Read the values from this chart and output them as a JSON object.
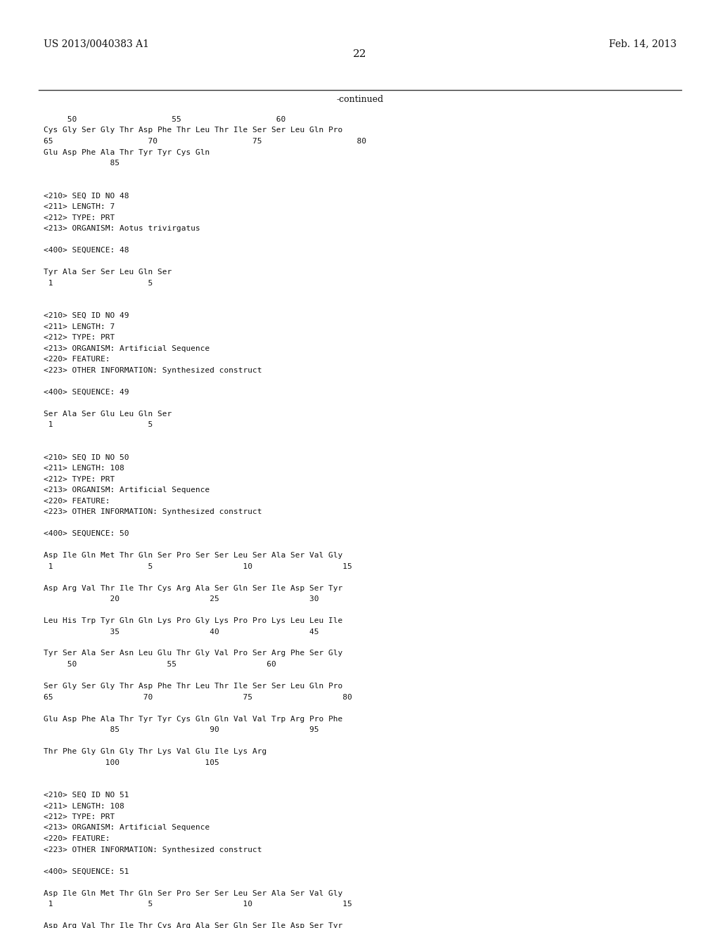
{
  "bg_color": "#ffffff",
  "top_left_text": "US 2013/0040383 A1",
  "top_right_text": "Feb. 14, 2013",
  "page_number": "22",
  "continued_label": "-continued",
  "figsize": [
    10.24,
    13.2
  ],
  "dpi": 100,
  "lines": [
    {
      "text": "     50                    55                    60",
      "indent": 0.09,
      "row": 0
    },
    {
      "text": "Cys Gly Ser Gly Thr Asp Phe Thr Leu Thr Ile Ser Ser Leu Gln Pro",
      "indent": 0.09,
      "row": 1
    },
    {
      "text": "65                    70                    75                    80",
      "indent": 0.09,
      "row": 2
    },
    {
      "text": "Glu Asp Phe Ala Thr Tyr Tyr Cys Gln",
      "indent": 0.09,
      "row": 3
    },
    {
      "text": "              85",
      "indent": 0.09,
      "row": 4
    },
    {
      "text": "",
      "indent": 0.09,
      "row": 5
    },
    {
      "text": "",
      "indent": 0.09,
      "row": 6
    },
    {
      "text": "<210> SEQ ID NO 48",
      "indent": 0.09,
      "row": 7
    },
    {
      "text": "<211> LENGTH: 7",
      "indent": 0.09,
      "row": 8
    },
    {
      "text": "<212> TYPE: PRT",
      "indent": 0.09,
      "row": 9
    },
    {
      "text": "<213> ORGANISM: Aotus trivirgatus",
      "indent": 0.09,
      "row": 10
    },
    {
      "text": "",
      "indent": 0.09,
      "row": 11
    },
    {
      "text": "<400> SEQUENCE: 48",
      "indent": 0.09,
      "row": 12
    },
    {
      "text": "",
      "indent": 0.09,
      "row": 13
    },
    {
      "text": "Tyr Ala Ser Ser Leu Gln Ser",
      "indent": 0.09,
      "row": 14
    },
    {
      "text": " 1                    5",
      "indent": 0.09,
      "row": 15
    },
    {
      "text": "",
      "indent": 0.09,
      "row": 16
    },
    {
      "text": "",
      "indent": 0.09,
      "row": 17
    },
    {
      "text": "<210> SEQ ID NO 49",
      "indent": 0.09,
      "row": 18
    },
    {
      "text": "<211> LENGTH: 7",
      "indent": 0.09,
      "row": 19
    },
    {
      "text": "<212> TYPE: PRT",
      "indent": 0.09,
      "row": 20
    },
    {
      "text": "<213> ORGANISM: Artificial Sequence",
      "indent": 0.09,
      "row": 21
    },
    {
      "text": "<220> FEATURE:",
      "indent": 0.09,
      "row": 22
    },
    {
      "text": "<223> OTHER INFORMATION: Synthesized construct",
      "indent": 0.09,
      "row": 23
    },
    {
      "text": "",
      "indent": 0.09,
      "row": 24
    },
    {
      "text": "<400> SEQUENCE: 49",
      "indent": 0.09,
      "row": 25
    },
    {
      "text": "",
      "indent": 0.09,
      "row": 26
    },
    {
      "text": "Ser Ala Ser Glu Leu Gln Ser",
      "indent": 0.09,
      "row": 27
    },
    {
      "text": " 1                    5",
      "indent": 0.09,
      "row": 28
    },
    {
      "text": "",
      "indent": 0.09,
      "row": 29
    },
    {
      "text": "",
      "indent": 0.09,
      "row": 30
    },
    {
      "text": "<210> SEQ ID NO 50",
      "indent": 0.09,
      "row": 31
    },
    {
      "text": "<211> LENGTH: 108",
      "indent": 0.09,
      "row": 32
    },
    {
      "text": "<212> TYPE: PRT",
      "indent": 0.09,
      "row": 33
    },
    {
      "text": "<213> ORGANISM: Artificial Sequence",
      "indent": 0.09,
      "row": 34
    },
    {
      "text": "<220> FEATURE:",
      "indent": 0.09,
      "row": 35
    },
    {
      "text": "<223> OTHER INFORMATION: Synthesized construct",
      "indent": 0.09,
      "row": 36
    },
    {
      "text": "",
      "indent": 0.09,
      "row": 37
    },
    {
      "text": "<400> SEQUENCE: 50",
      "indent": 0.09,
      "row": 38
    },
    {
      "text": "",
      "indent": 0.09,
      "row": 39
    },
    {
      "text": "Asp Ile Gln Met Thr Gln Ser Pro Ser Ser Leu Ser Ala Ser Val Gly",
      "indent": 0.09,
      "row": 40
    },
    {
      "text": " 1                    5                   10                   15",
      "indent": 0.09,
      "row": 41
    },
    {
      "text": "",
      "indent": 0.09,
      "row": 42
    },
    {
      "text": "Asp Arg Val Thr Ile Thr Cys Arg Ala Ser Gln Ser Ile Asp Ser Tyr",
      "indent": 0.09,
      "row": 43
    },
    {
      "text": "              20                   25                   30",
      "indent": 0.09,
      "row": 44
    },
    {
      "text": "",
      "indent": 0.09,
      "row": 45
    },
    {
      "text": "Leu His Trp Tyr Gln Gln Lys Pro Gly Lys Pro Pro Lys Leu Leu Ile",
      "indent": 0.09,
      "row": 46
    },
    {
      "text": "              35                   40                   45",
      "indent": 0.09,
      "row": 47
    },
    {
      "text": "",
      "indent": 0.09,
      "row": 48
    },
    {
      "text": "Tyr Ser Ala Ser Asn Leu Glu Thr Gly Val Pro Ser Arg Phe Ser Gly",
      "indent": 0.09,
      "row": 49
    },
    {
      "text": "     50                   55                   60",
      "indent": 0.09,
      "row": 50
    },
    {
      "text": "",
      "indent": 0.09,
      "row": 51
    },
    {
      "text": "Ser Gly Ser Gly Thr Asp Phe Thr Leu Thr Ile Ser Ser Leu Gln Pro",
      "indent": 0.09,
      "row": 52
    },
    {
      "text": "65                   70                   75                   80",
      "indent": 0.09,
      "row": 53
    },
    {
      "text": "",
      "indent": 0.09,
      "row": 54
    },
    {
      "text": "Glu Asp Phe Ala Thr Tyr Tyr Cys Gln Gln Val Val Trp Arg Pro Phe",
      "indent": 0.09,
      "row": 55
    },
    {
      "text": "              85                   90                   95",
      "indent": 0.09,
      "row": 56
    },
    {
      "text": "",
      "indent": 0.09,
      "row": 57
    },
    {
      "text": "Thr Phe Gly Gln Gly Thr Lys Val Glu Ile Lys Arg",
      "indent": 0.09,
      "row": 58
    },
    {
      "text": "             100                  105",
      "indent": 0.09,
      "row": 59
    },
    {
      "text": "",
      "indent": 0.09,
      "row": 60
    },
    {
      "text": "",
      "indent": 0.09,
      "row": 61
    },
    {
      "text": "<210> SEQ ID NO 51",
      "indent": 0.09,
      "row": 62
    },
    {
      "text": "<211> LENGTH: 108",
      "indent": 0.09,
      "row": 63
    },
    {
      "text": "<212> TYPE: PRT",
      "indent": 0.09,
      "row": 64
    },
    {
      "text": "<213> ORGANISM: Artificial Sequence",
      "indent": 0.09,
      "row": 65
    },
    {
      "text": "<220> FEATURE:",
      "indent": 0.09,
      "row": 66
    },
    {
      "text": "<223> OTHER INFORMATION: Synthesized construct",
      "indent": 0.09,
      "row": 67
    },
    {
      "text": "",
      "indent": 0.09,
      "row": 68
    },
    {
      "text": "<400> SEQUENCE: 51",
      "indent": 0.09,
      "row": 69
    },
    {
      "text": "",
      "indent": 0.09,
      "row": 70
    },
    {
      "text": "Asp Ile Gln Met Thr Gln Ser Pro Ser Ser Leu Ser Ala Ser Val Gly",
      "indent": 0.09,
      "row": 71
    },
    {
      "text": " 1                    5                   10                   15",
      "indent": 0.09,
      "row": 72
    },
    {
      "text": "",
      "indent": 0.09,
      "row": 73
    },
    {
      "text": "Asp Arg Val Thr Ile Thr Cys Arg Ala Ser Gln Ser Ile Asp Ser Tyr",
      "indent": 0.09,
      "row": 74
    }
  ]
}
